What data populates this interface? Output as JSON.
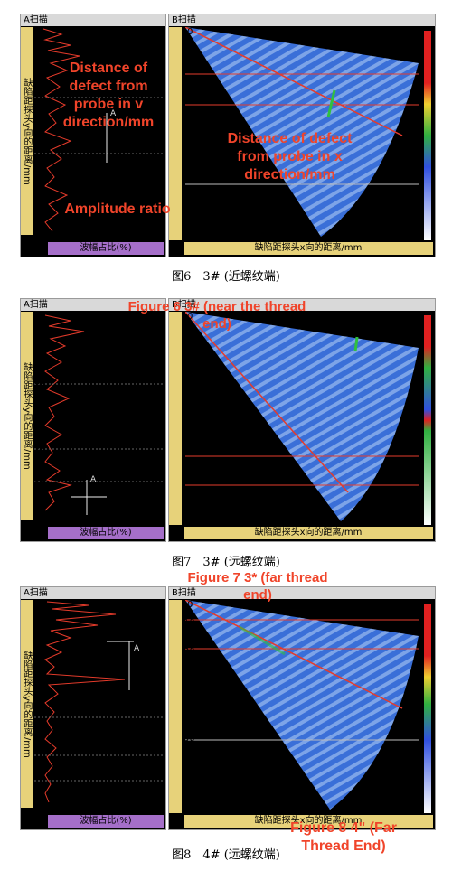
{
  "figures": [
    {
      "id": "fig6",
      "a_title": "A扫描",
      "b_title": "B扫描",
      "a_ylabel": "缺陷距探头y向的距离/mm",
      "a_xlabel": "波幅占比(%)",
      "b_xlabel": "缺陷距探头x向的距离/mm",
      "a_yticks": [
        "0",
        "5",
        "10",
        "15",
        "20",
        "25",
        "30"
      ],
      "a_xticks": [
        "20",
        "40",
        "60",
        "80"
      ],
      "b_yticks": [
        "0",
        "10",
        "20",
        "30",
        "40",
        "50",
        "60"
      ],
      "b_xticks": [
        "0",
        "20",
        "40",
        "60",
        "80"
      ],
      "caption": "图6　3# (近螺纹端)",
      "overlays": {
        "a_y": "Distance of defect from probe in v direction/mm",
        "a_x": "Amplitude ratio",
        "b_x": "Distance of defect from probe in x direction/mm"
      },
      "marker": "A"
    },
    {
      "id": "fig7",
      "a_title": "A扫描",
      "b_title": "B扫描",
      "a_ylabel": "缺陷距探头y向的距离/mm",
      "a_xlabel": "波幅占比(%)",
      "b_xlabel": "缺陷距探头x向的距离/mm",
      "a_yticks": [
        "0",
        "10",
        "20",
        "30",
        "40",
        "50",
        "60"
      ],
      "a_xticks": [
        "20",
        "40",
        "60",
        "80"
      ],
      "b_yticks": [
        "0",
        "10",
        "20",
        "30",
        "40",
        "50",
        "60"
      ],
      "b_xticks": [
        "0",
        "20",
        "40",
        "60",
        "80"
      ],
      "caption": "图7　3# (远螺纹端)",
      "overlays": {
        "title": "Figure 6 3# (near the thread end)"
      },
      "marker": "A"
    },
    {
      "id": "fig8",
      "a_title": "A扫描",
      "b_title": "B扫描",
      "a_ylabel": "缺陷距探头y向的距离/mm",
      "a_xlabel": "波幅占比(%)",
      "b_xlabel": "缺陷距探头x向的距离/mm",
      "a_yticks": [
        "0",
        "5",
        "10",
        "15",
        "20",
        "25",
        "30",
        "35"
      ],
      "a_xticks": [
        "20",
        "40",
        "60",
        "80"
      ],
      "b_yticks": [
        "0",
        "10",
        "20",
        "30",
        "40",
        "50",
        "60"
      ],
      "b_xticks": [
        "0",
        "20",
        "40",
        "60",
        "80"
      ],
      "caption": "图8　4# (远螺纹端)",
      "overlays": {
        "title": "Figure 7 3* (far thread end)",
        "bottom": "Figure 8 4\" (Far Thread End)"
      },
      "marker": "A"
    }
  ],
  "colors": {
    "overlay_red": "#f0442a",
    "purple": "#a56fc9",
    "yellow": "#e7d27a",
    "scan_blue": "#3a6fd8"
  }
}
